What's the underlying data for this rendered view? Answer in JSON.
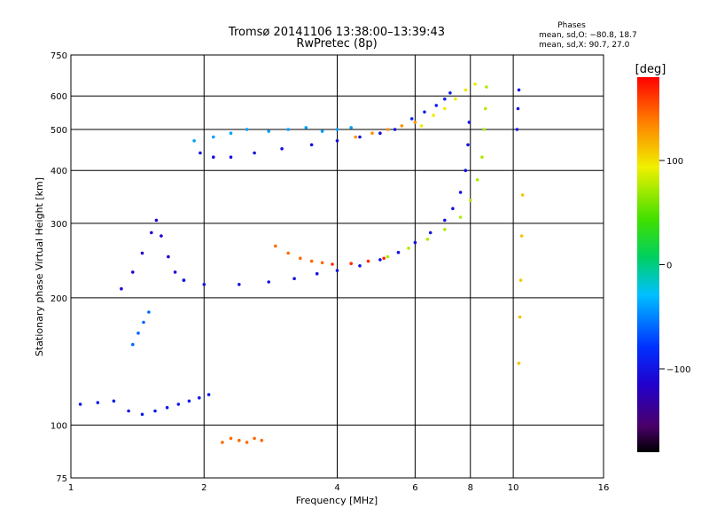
{
  "chart_data": {
    "type": "scatter",
    "title": "Tromsø 20141106 13:38:00–13:39:43",
    "subtitle": "RwPretec (8p)",
    "xlabel": "Frequency [MHz]",
    "ylabel": "Stationary phase Virtual Height [km]",
    "x_scale": "log2",
    "y_scale": "log",
    "xlim": [
      1,
      16
    ],
    "ylim": [
      75,
      750
    ],
    "x_ticks": [
      1,
      2,
      4,
      6,
      8,
      10,
      16
    ],
    "x_tick_labels": [
      "1",
      "2",
      "4",
      "6",
      "8",
      "10",
      "16"
    ],
    "y_ticks": [
      75,
      100,
      200,
      300,
      400,
      500,
      600,
      750
    ],
    "y_tick_labels": [
      "75",
      "100",
      "200",
      "300",
      "400",
      "500",
      "600",
      "750"
    ],
    "grid": true,
    "phases_box": {
      "title": "Phases",
      "line1": "mean, sd,O: −80.8, 18.7",
      "line2": "mean, sd,X:  90.7, 27.0"
    },
    "colorbar": {
      "label": "[deg]",
      "range": [
        -180,
        180
      ],
      "tick_values": [
        100,
        0,
        -100
      ],
      "tick_labels": [
        "100",
        "0",
        "−100"
      ],
      "colormap": "rainbow (black → violet → blue → cyan → green → yellow → orange → red)"
    },
    "series": [],
    "traces": [
      {
        "x": [
          1.96,
          2.1,
          2.3,
          2.6,
          3.0,
          3.5,
          4.0,
          4.5,
          5.0,
          5.4
        ],
        "y": [
          440,
          430,
          430,
          440,
          450,
          460,
          470,
          480,
          490,
          500
        ],
        "phase": -105
      },
      {
        "x": [
          1.9,
          2.1,
          2.3,
          2.5,
          2.8,
          3.1,
          3.4,
          3.7,
          4.0,
          4.3
        ],
        "y": [
          470,
          480,
          490,
          500,
          495,
          500,
          505,
          495,
          500,
          505
        ],
        "phase": -40
      },
      {
        "x": [
          4.4,
          4.8,
          5.2,
          5.6,
          6.0
        ],
        "y": [
          480,
          490,
          500,
          510,
          520
        ],
        "phase": 130
      },
      {
        "x": [
          5.9,
          6.3,
          6.7,
          7.0,
          7.2
        ],
        "y": [
          530,
          550,
          570,
          590,
          610
        ],
        "phase": -90
      },
      {
        "x": [
          6.2,
          6.6,
          7.0,
          7.4,
          7.8,
          8.2
        ],
        "y": [
          510,
          540,
          560,
          590,
          620,
          640
        ],
        "phase": 95
      },
      {
        "x": [
          1.3,
          1.38,
          1.45,
          1.52,
          1.56,
          1.6,
          1.66,
          1.72,
          1.8
        ],
        "y": [
          210,
          230,
          255,
          285,
          305,
          280,
          250,
          230,
          220
        ],
        "phase": -110
      },
      {
        "x": [
          1.8,
          2.0,
          2.4,
          2.8,
          3.2,
          3.6,
          4.0,
          4.5,
          5.0,
          5.5,
          6.0,
          6.5,
          7.0,
          7.3,
          7.6,
          7.8,
          7.9,
          7.95
        ],
        "y": [
          220,
          215,
          215,
          218,
          222,
          228,
          232,
          238,
          246,
          256,
          270,
          285,
          305,
          325,
          355,
          400,
          460,
          520
        ],
        "phase": -100
      },
      {
        "x": [
          2.9,
          3.1,
          3.3,
          3.5,
          3.7
        ],
        "y": [
          265,
          255,
          248,
          244,
          242
        ],
        "phase": 145
      },
      {
        "x": [
          3.9,
          4.3,
          4.7,
          5.1
        ],
        "y": [
          240,
          241,
          244,
          248
        ],
        "phase": 165
      },
      {
        "x": [
          5.2,
          5.8,
          6.4,
          7.0,
          7.6,
          8.0,
          8.3,
          8.5,
          8.6,
          8.65,
          8.7
        ],
        "y": [
          250,
          262,
          275,
          290,
          310,
          340,
          380,
          430,
          500,
          560,
          630
        ],
        "phase": 75
      },
      {
        "x": [
          1.05,
          1.15,
          1.25,
          1.35,
          1.45,
          1.55,
          1.65,
          1.75,
          1.85,
          1.95,
          2.05
        ],
        "y": [
          112,
          113,
          114,
          108,
          106,
          108,
          110,
          112,
          114,
          116,
          118
        ],
        "phase": -95
      },
      {
        "x": [
          1.38,
          1.42,
          1.46,
          1.5
        ],
        "y": [
          155,
          165,
          175,
          185
        ],
        "phase": -60
      },
      {
        "x": [
          2.2,
          2.3,
          2.4,
          2.5,
          2.6,
          2.7
        ],
        "y": [
          91,
          93,
          92,
          91,
          93,
          92
        ],
        "phase": 145
      },
      {
        "x": [
          10.3,
          10.35,
          10.4,
          10.45,
          10.5
        ],
        "y": [
          140,
          180,
          220,
          280,
          350
        ],
        "phase": 110
      },
      {
        "x": [
          10.2,
          10.25,
          10.3
        ],
        "y": [
          500,
          560,
          620
        ],
        "phase": -100
      }
    ]
  }
}
